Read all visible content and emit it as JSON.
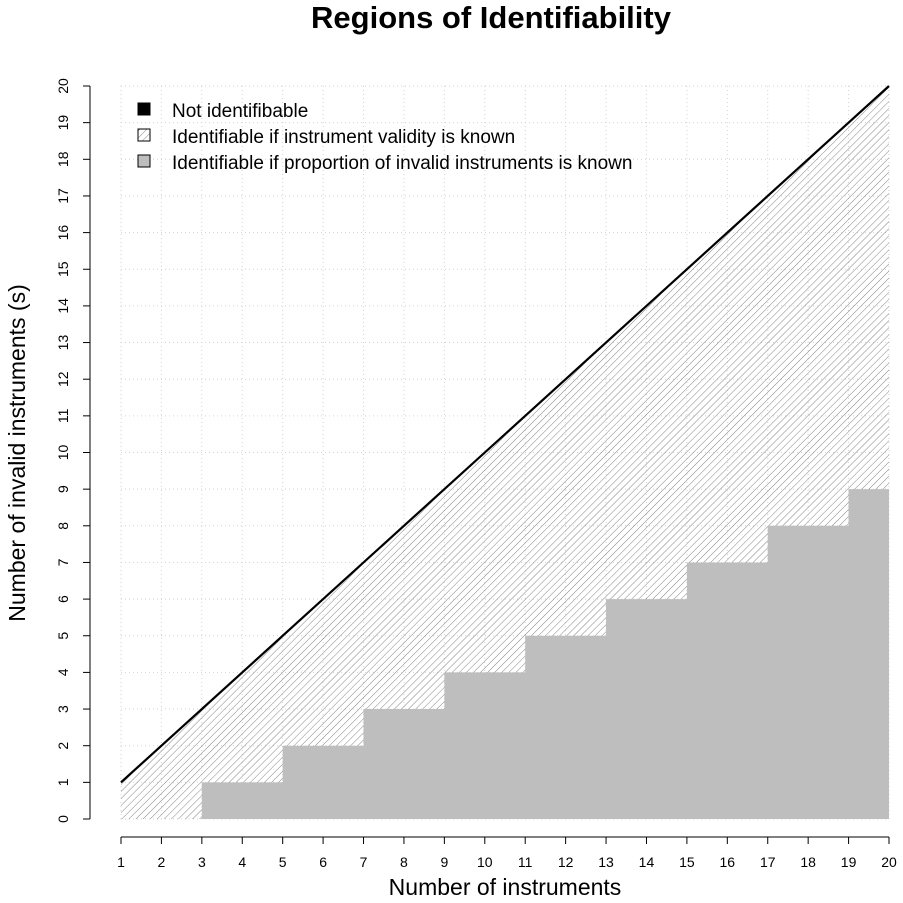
{
  "chart_data": {
    "type": "area",
    "title": "Regions of Identifiability",
    "xlabel": "Number of instruments",
    "ylabel": "Number of invalid instruments (s)",
    "xlim": [
      1,
      20
    ],
    "ylim": [
      0,
      20
    ],
    "x_ticks": [
      1,
      2,
      3,
      4,
      5,
      6,
      7,
      8,
      9,
      10,
      11,
      12,
      13,
      14,
      15,
      16,
      17,
      18,
      19,
      20
    ],
    "y_ticks": [
      0,
      1,
      2,
      3,
      4,
      5,
      6,
      7,
      8,
      9,
      10,
      11,
      12,
      13,
      14,
      15,
      16,
      17,
      18,
      19,
      20
    ],
    "grid": true,
    "legend_position": "top-left",
    "legend": [
      {
        "label": "Not identifibable",
        "fill": "solid-black"
      },
      {
        "label": "Identifiable if instrument validity is known",
        "fill": "hatched"
      },
      {
        "label": "Identifiable if proportion of invalid instruments is known",
        "fill": "solid-gray"
      }
    ],
    "colors": {
      "gray_fill": "#bebebe",
      "hatch": "#777777",
      "line": "#000000",
      "grid": "#d3d3d3"
    },
    "series": [
      {
        "type": "line",
        "x": [
          1,
          20
        ],
        "y": [
          1,
          20
        ]
      },
      {
        "type": "hatched-area",
        "x": [
          1,
          20
        ],
        "y_upper": [
          1,
          20
        ],
        "y_lower": [
          0,
          0
        ]
      },
      {
        "type": "step-area",
        "x": [
          3,
          5,
          7,
          9,
          11,
          13,
          15,
          17,
          19,
          20
        ],
        "y": [
          1,
          2,
          3,
          4,
          5,
          6,
          7,
          8,
          9,
          9
        ]
      }
    ]
  }
}
